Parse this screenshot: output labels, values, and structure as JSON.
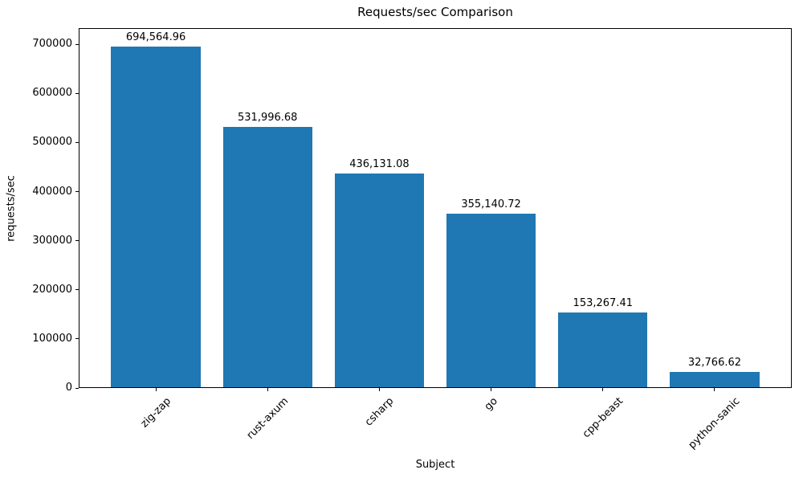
{
  "chart_data": {
    "type": "bar",
    "title": "Requests/sec Comparison",
    "xlabel": "Subject",
    "ylabel": "requests/sec",
    "categories": [
      "zig-zap",
      "rust-axum",
      "csharp",
      "go",
      "cpp-beast",
      "python-sanic"
    ],
    "values": [
      694564.96,
      531996.68,
      436131.08,
      355140.72,
      153267.41,
      32766.62
    ],
    "value_labels": [
      "694,564.96",
      "531,996.68",
      "436,131.08",
      "355,140.72",
      "153,267.41",
      "32,766.62"
    ],
    "yticks": [
      0,
      100000,
      200000,
      300000,
      400000,
      500000,
      600000,
      700000
    ],
    "ytick_labels": [
      "0",
      "100000",
      "200000",
      "300000",
      "400000",
      "500000",
      "600000",
      "700000"
    ],
    "ylim": [
      0,
      733000
    ],
    "bar_color": "#1f77b4",
    "grid": false,
    "legend": null,
    "x_tick_rotation_deg": 45
  }
}
